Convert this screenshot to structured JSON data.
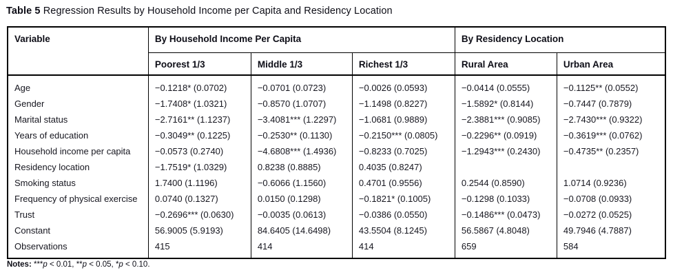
{
  "caption": {
    "prefix": "Table 5",
    "text": " Regression Results by Household Income per Capita and Residency Location"
  },
  "table": {
    "header": {
      "variable": "Variable",
      "group1": "By Household Income Per Capita",
      "group2": "By Residency Location",
      "subheaders": [
        "Poorest 1/3",
        "Middle 1/3",
        "Richest 1/3",
        "Rural Area",
        "Urban Area"
      ]
    },
    "rows": [
      {
        "label": "Age",
        "cells": [
          "−0.1218* (0.0702)",
          "−0.0701 (0.0723)",
          "−0.0026 (0.0593)",
          "−0.0414 (0.0555)",
          "−0.1125** (0.0552)"
        ]
      },
      {
        "label": "Gender",
        "cells": [
          "−1.7408* (1.0321)",
          "−0.8570 (1.0707)",
          "−1.1498 (0.8227)",
          "−1.5892* (0.8144)",
          "−0.7447 (0.7879)"
        ]
      },
      {
        "label": "Marital status",
        "cells": [
          "−2.7161** (1.1237)",
          "−3.4081*** (1.2297)",
          "−1.0681 (0.9889)",
          "−2.3881*** (0.9085)",
          "−2.7430*** (0.9322)"
        ]
      },
      {
        "label": "Years of education",
        "cells": [
          "−0.3049** (0.1225)",
          "−0.2530** (0.1130)",
          "−0.2150*** (0.0805)",
          "−0.2296** (0.0919)",
          "−0.3619*** (0.0762)"
        ]
      },
      {
        "label": "Household income per capita",
        "cells": [
          "−0.0573 (0.2740)",
          "−4.6808*** (1.4936)",
          "−0.8233 (0.7025)",
          "−1.2943*** (0.2430)",
          "−0.4735** (0.2357)"
        ]
      },
      {
        "label": "Residency location",
        "cells": [
          "−1.7519* (1.0329)",
          "0.8238 (0.8885)",
          "0.4035 (0.8247)",
          "",
          ""
        ]
      },
      {
        "label": "Smoking status",
        "cells": [
          "1.7400 (1.1196)",
          "−0.6066 (1.1560)",
          "0.4701 (0.9556)",
          "0.2544 (0.8590)",
          "1.0714 (0.9236)"
        ]
      },
      {
        "label": "Frequency of physical exercise",
        "cells": [
          "0.0740 (0.1327)",
          "0.0150 (0.1298)",
          "−0.1821* (0.1005)",
          "−0.1298 (0.1033)",
          "−0.0708 (0.0933)"
        ]
      },
      {
        "label": "Trust",
        "cells": [
          "−0.2696*** (0.0630)",
          "−0.0035 (0.0613)",
          "−0.0386 (0.0550)",
          "−0.1486*** (0.0473)",
          "−0.0272 (0.0525)"
        ]
      },
      {
        "label": "Constant",
        "cells": [
          "56.9005 (5.9193)",
          "84.6405 (14.6498)",
          "43.5504 (8.1245)",
          "56.5867 (4.8048)",
          "49.7946 (4.7887)"
        ]
      },
      {
        "label": "Observations",
        "cells": [
          "415",
          "414",
          "414",
          "659",
          "584"
        ]
      }
    ]
  },
  "notes": {
    "label": "Notes:",
    "parts": [
      {
        "stars": " ***",
        "sym": "p",
        "cond": " < 0.01,"
      },
      {
        "stars": " **",
        "sym": "p",
        "cond": " < 0.05,"
      },
      {
        "stars": " *",
        "sym": "p",
        "cond": " < 0.10."
      }
    ]
  }
}
